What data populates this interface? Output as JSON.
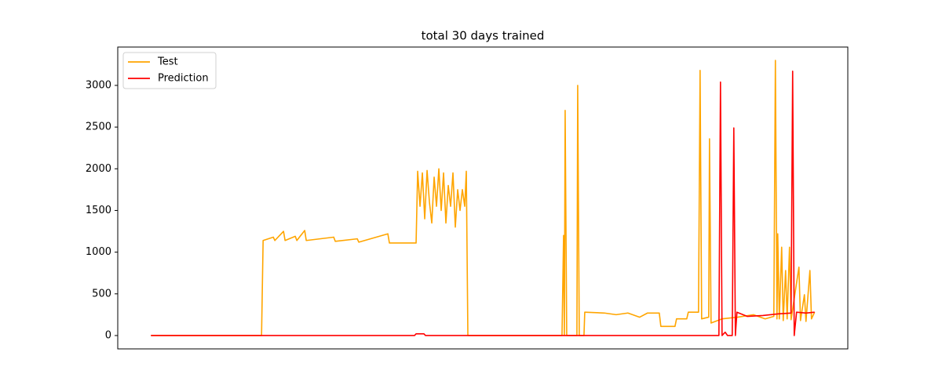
{
  "chart_data": {
    "type": "line",
    "title": "total 30 days trained",
    "xlim": [
      -42.3,
      888.3
    ],
    "ylim": [
      -160,
      3460
    ],
    "yticks": [
      0,
      500,
      1000,
      1500,
      2000,
      2500,
      3000
    ],
    "grid": false,
    "legend": "upper left",
    "series": [
      {
        "name": "Test",
        "color": "#ffa500",
        "x": [
          0,
          141,
          143,
          156,
          158,
          169,
          171,
          184,
          186,
          196,
          198,
          233,
          235,
          263,
          265,
          302,
          304,
          338,
          340,
          343,
          346,
          349,
          352,
          355,
          358,
          361,
          364,
          367,
          370,
          373,
          376,
          379,
          382,
          385,
          388,
          391,
          394,
          397,
          400,
          402,
          404,
          524,
          526,
          527,
          528,
          530,
          543,
          544,
          546,
          552,
          553,
          578,
          593,
          608,
          623,
          633,
          648,
          650,
          668,
          670,
          683,
          685,
          698,
          700,
          702,
          711,
          712,
          714,
          728,
          748,
          768,
          783,
          794,
          796,
          798,
          799,
          801,
          804,
          806,
          809,
          811,
          814,
          816,
          826,
          828,
          833,
          835,
          840,
          842,
          846
        ],
        "values": [
          0,
          0,
          1140,
          1180,
          1140,
          1250,
          1140,
          1190,
          1140,
          1260,
          1140,
          1180,
          1130,
          1160,
          1120,
          1220,
          1110,
          1110,
          1970,
          1550,
          1950,
          1400,
          1980,
          1600,
          1350,
          1900,
          1550,
          2000,
          1500,
          1950,
          1350,
          1800,
          1550,
          1950,
          1300,
          1750,
          1500,
          1750,
          1550,
          1970,
          0,
          0,
          1200,
          0,
          2700,
          0,
          0,
          3000,
          0,
          0,
          280,
          270,
          250,
          270,
          220,
          270,
          270,
          110,
          110,
          200,
          200,
          280,
          280,
          3180,
          200,
          220,
          2360,
          150,
          200,
          220,
          250,
          200,
          230,
          3300,
          200,
          1220,
          200,
          1060,
          180,
          780,
          200,
          1060,
          190,
          820,
          180,
          490,
          170,
          780,
          200,
          280
        ]
      },
      {
        "name": "Prediction",
        "color": "#ff0000",
        "x": [
          0,
          336,
          338,
          348,
          350,
          724,
          726,
          728,
          732,
          735,
          741,
          743,
          745,
          747,
          760,
          780,
          800,
          816,
          818,
          820,
          823,
          835,
          846
        ],
        "values": [
          0,
          0,
          20,
          20,
          0,
          0,
          3040,
          0,
          40,
          0,
          0,
          2490,
          0,
          280,
          230,
          240,
          260,
          270,
          3170,
          0,
          280,
          270,
          280
        ]
      }
    ]
  }
}
